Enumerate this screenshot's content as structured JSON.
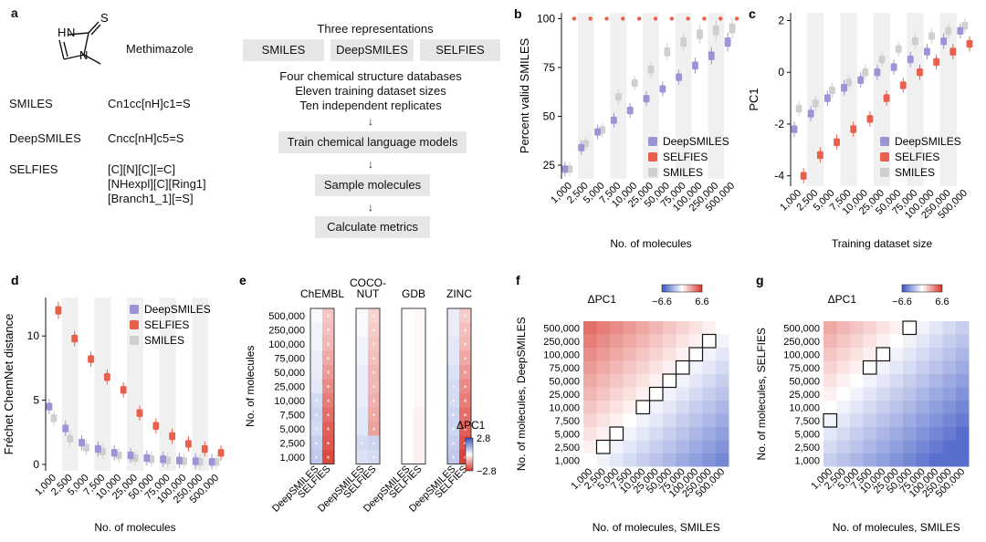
{
  "panel_a": {
    "label": "a",
    "structure_labels": {
      "h_n": "H",
      "n_top": "N",
      "n_bottom": "N",
      "s": "S"
    },
    "molecule_name": "Methimazole",
    "rows": [
      {
        "name": "SMILES",
        "value": [
          "Cn1cc[nH]c1=S"
        ]
      },
      {
        "name": "DeepSMILES",
        "value": [
          "Cncc[nH]c5=S"
        ]
      },
      {
        "name": "SELFIES",
        "value": [
          "[C][N][C][=C]",
          "[NHexpl][C][Ring1]",
          "[Branch1_1][=S]"
        ]
      }
    ]
  },
  "workflow": {
    "title": "Three representations",
    "representations": [
      "SMILES",
      "DeepSMILES",
      "SELFIES"
    ],
    "info_lines": [
      "Four chemical structure databases",
      "Eleven training dataset sizes",
      "Ten independent replicates"
    ],
    "steps": [
      "Train chemical language models",
      "Sample molecules",
      "Calculate metrics"
    ],
    "arrow": "↓"
  },
  "legend_entries": [
    "DeepSMILES",
    "SELFIES",
    "SMILES"
  ],
  "colors": {
    "deepsmiles": "#9b94d6",
    "selfies": "#e8604c",
    "smiles": "#cfcfcf",
    "stripe": "#f0f0f0",
    "neg": "#3b56c4",
    "pos": "#d9342b"
  },
  "size_ticks": [
    "1,000",
    "2,500",
    "5,000",
    "7,500",
    "10,000",
    "25,000",
    "50,000",
    "75,000",
    "100,000",
    "250,000",
    "500,000"
  ],
  "chart_data": [
    {
      "id": "b",
      "panel_label": "b",
      "type": "box",
      "ylabel": "Percent valid SMILES",
      "xlabel": "No. of molecules",
      "ylim": [
        18,
        103
      ],
      "yticks": [
        25,
        50,
        75,
        100
      ],
      "series": [
        {
          "name": "DeepSMILES",
          "values": [
            23,
            34,
            42,
            48,
            53,
            59,
            64,
            70,
            76,
            81,
            88
          ]
        },
        {
          "name": "SELFIES",
          "values": [
            100,
            100,
            100,
            100,
            100,
            100,
            100,
            100,
            100,
            100,
            100
          ]
        },
        {
          "name": "SMILES",
          "values": [
            23,
            36,
            43,
            60,
            67,
            74,
            83,
            88,
            92,
            94,
            95
          ]
        }
      ]
    },
    {
      "id": "c",
      "panel_label": "c",
      "type": "box",
      "ylabel": "PC1",
      "xlabel": "Training dataset size",
      "ylim": [
        -4.4,
        2.3
      ],
      "yticks": [
        -4,
        -2,
        0,
        2
      ],
      "series": [
        {
          "name": "DeepSMILES",
          "values": [
            -2.2,
            -1.6,
            -1.0,
            -0.6,
            -0.3,
            0.0,
            0.2,
            0.5,
            0.8,
            1.2,
            1.6
          ]
        },
        {
          "name": "SELFIES",
          "values": [
            -4.0,
            -3.2,
            -2.7,
            -2.2,
            -1.8,
            -1.0,
            -0.5,
            0.0,
            0.4,
            0.8,
            1.1
          ]
        },
        {
          "name": "SMILES",
          "values": [
            -1.4,
            -1.2,
            -0.7,
            -0.4,
            0.0,
            0.5,
            0.9,
            1.2,
            1.4,
            1.6,
            1.8
          ]
        }
      ]
    },
    {
      "id": "d",
      "panel_label": "d",
      "type": "box",
      "ylabel": "Fréchet ChemNet distance",
      "xlabel": "No. of molecules",
      "ylim": [
        -0.5,
        13
      ],
      "yticks": [
        0,
        5,
        10
      ],
      "series": [
        {
          "name": "DeepSMILES",
          "values": [
            4.5,
            2.8,
            1.7,
            1.2,
            0.9,
            0.7,
            0.5,
            0.4,
            0.3,
            0.25,
            0.2
          ]
        },
        {
          "name": "SELFIES",
          "values": [
            12.0,
            9.8,
            8.2,
            6.8,
            5.8,
            4.0,
            3.0,
            2.2,
            1.6,
            1.2,
            0.9
          ]
        },
        {
          "name": "SMILES",
          "values": [
            3.6,
            2.0,
            1.3,
            1.0,
            0.7,
            0.5,
            0.4,
            0.3,
            0.25,
            0.2,
            0.2
          ]
        }
      ]
    },
    {
      "id": "e",
      "panel_label": "e",
      "type": "heatmap",
      "ylabel": "No. of molecules",
      "rows": [
        "500,000",
        "250,000",
        "100,000",
        "75,000",
        "50,000",
        "25,000",
        "10,000",
        "7,500",
        "5,000",
        "2,500",
        "1,000"
      ],
      "databases": [
        {
          "name": [
            "ChEMBL"
          ],
          "deepsmiles": [
            0.1,
            0.2,
            0.2,
            0.3,
            0.3,
            0.4,
            0.6,
            0.7,
            0.6,
            0.8,
            0.9
          ],
          "selfies": [
            -0.8,
            -0.9,
            -1.0,
            -1.2,
            -1.4,
            -1.6,
            -1.8,
            -2.0,
            -2.2,
            -2.3,
            -2.5
          ]
        },
        {
          "name": [
            "COCO-",
            "NUT"
          ],
          "deepsmiles": [
            0.1,
            0.1,
            0.2,
            0.2,
            0.3,
            0.3,
            0.3,
            0.4,
            0.4,
            0.6,
            0.5
          ],
          "selfies": [
            -0.6,
            -0.7,
            -0.8,
            -0.9,
            -1.0,
            -1.0,
            -1.1,
            -1.2,
            -1.3,
            0.7,
            0.6
          ]
        },
        {
          "name": [
            "GDB"
          ],
          "deepsmiles": [
            0.0,
            0.0,
            0.0,
            0.0,
            0.0,
            0.0,
            0.0,
            0.0,
            0.0,
            0.0,
            0.0
          ],
          "selfies": [
            -0.1,
            -0.1,
            -0.1,
            -0.1,
            -0.1,
            -0.1,
            -0.1,
            -0.2,
            -0.2,
            -0.2,
            -0.2
          ]
        },
        {
          "name": [
            "ZINC"
          ],
          "deepsmiles": [
            0.3,
            0.3,
            0.4,
            0.4,
            0.5,
            0.6,
            0.6,
            0.7,
            0.7,
            0.8,
            0.9
          ],
          "selfies": [
            -0.7,
            -0.9,
            -1.0,
            -1.2,
            -1.4,
            -1.6,
            -1.8,
            -2.0,
            -2.2,
            -2.4,
            -2.6
          ]
        }
      ],
      "xtick_labels": [
        "DeepSMILES",
        "SELFIES"
      ],
      "star": "*",
      "colorbar": {
        "title": "ΔPC1",
        "max_label": "2.8",
        "min_label": "−2.8",
        "range": [
          -2.8,
          2.8
        ]
      }
    },
    {
      "id": "f",
      "panel_label": "f",
      "type": "heatmap",
      "ylabel": "No. of molecules, DeepSMILES",
      "xlabel": "No. of molecules, SMILES",
      "colorbar": {
        "title": "ΔPC1",
        "min_label": "−6.6",
        "max_label": "6.6",
        "range": [
          -6.6,
          6.6
        ]
      },
      "highlight_pairs": [
        [
          1,
          1
        ],
        [
          2,
          2
        ],
        [
          4,
          4
        ],
        [
          5,
          5
        ],
        [
          6,
          6
        ],
        [
          7,
          7
        ],
        [
          8,
          8
        ],
        [
          9,
          9
        ]
      ]
    },
    {
      "id": "g",
      "panel_label": "g",
      "type": "heatmap",
      "ylabel": "No. of molecules, SELFIES",
      "xlabel": "No. of molecules, SMILES",
      "colorbar": {
        "title": "ΔPC1",
        "min_label": "−6.6",
        "max_label": "6.6",
        "range": [
          -6.6,
          6.6
        ]
      },
      "highlight_pairs": [
        [
          0,
          3
        ],
        [
          3,
          7
        ],
        [
          4,
          8
        ],
        [
          6,
          10
        ]
      ]
    }
  ]
}
